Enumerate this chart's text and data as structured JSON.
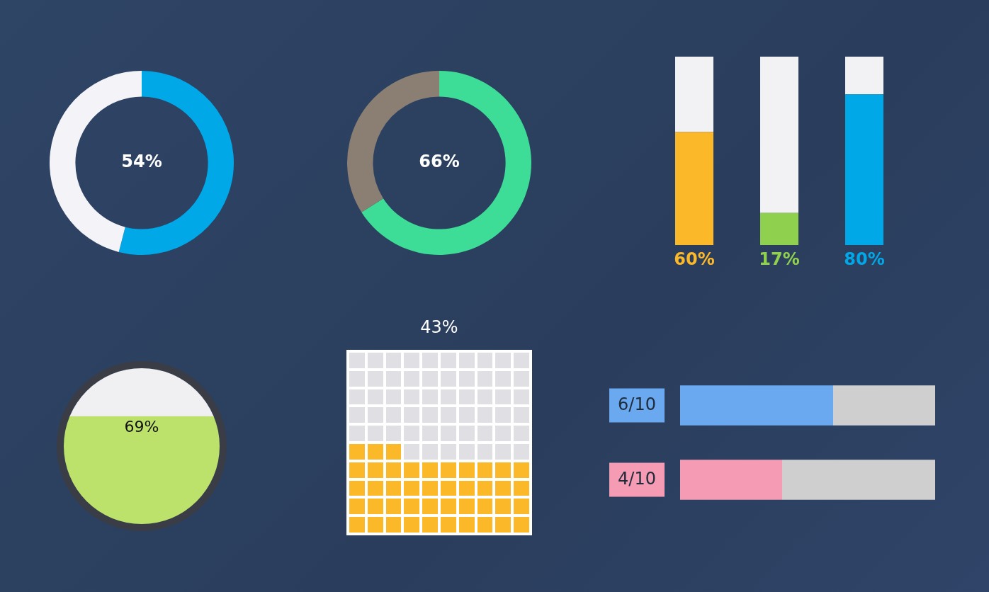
{
  "chart_data": [
    {
      "type": "donut",
      "categories": [
        null,
        null
      ],
      "values": [
        54,
        46
      ],
      "colors": [
        "#00a8e8",
        "#f4f4f8"
      ],
      "annotations": [
        "54%"
      ]
    },
    {
      "type": "donut",
      "categories": [
        null,
        null
      ],
      "values": [
        66,
        34
      ],
      "colors": [
        "#3ddc97",
        "#8a7f72"
      ],
      "annotations": [
        "66%"
      ]
    },
    {
      "type": "bar",
      "stacked": true,
      "categories": [
        null,
        null,
        null
      ],
      "series": [
        {
          "colors": [
            "#fbb829",
            "#8fd14f",
            "#00a8e8"
          ],
          "values": [
            60,
            17,
            80
          ],
          "value_labels": [
            "60%",
            "17%",
            "80%"
          ]
        },
        {
          "color": "#f2f2f4",
          "values": [
            40,
            83,
            20
          ]
        }
      ],
      "tick_labels": false
    },
    {
      "type": "bar",
      "stacked": true,
      "categories": [
        null
      ],
      "series": [
        {
          "color": "#bde26b",
          "values": [
            69
          ],
          "value_labels": [
            "69%"
          ]
        },
        {
          "color": "#f0eff2",
          "values": [
            31
          ]
        }
      ],
      "tick_labels": false
    },
    {
      "type": "other",
      "values": [
        43
      ],
      "color": "#fbb829",
      "value_labels": [
        "43%"
      ]
    },
    {
      "type": "bar",
      "orientation": "horizontal",
      "stacked": true,
      "categories": [
        null,
        null
      ],
      "series": [
        {
          "colors": [
            "#6aa8f0",
            "#f59cb4"
          ],
          "values": [
            0.6,
            0.4
          ],
          "value_labels": [
            "6/10",
            "4/10"
          ]
        },
        {
          "color": "#cfcfcf",
          "values": [
            0.4,
            0.6
          ]
        }
      ],
      "tick_labels": false
    }
  ]
}
